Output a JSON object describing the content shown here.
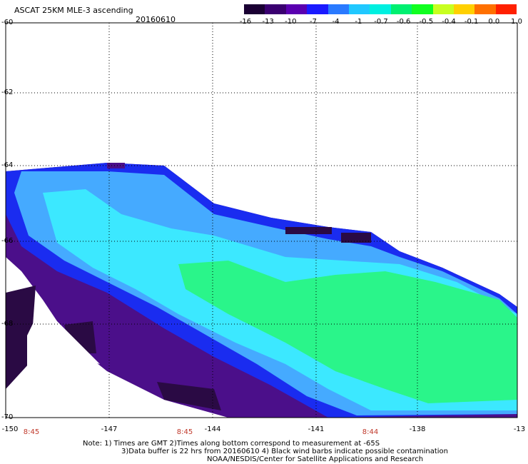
{
  "title": "ASCAT 25KM MLE-3 ascending",
  "date": "20160610",
  "colorbar": {
    "labels": [
      "-16",
      "-13",
      "-10",
      "-7",
      "-4",
      "-1",
      "-0.7",
      "-0.6",
      "-0.5",
      "-0.4",
      "-0.1",
      "0.0",
      "1.0"
    ],
    "colors": [
      "#1a0033",
      "#3a0070",
      "#5a00b0",
      "#1a1aff",
      "#2a7aff",
      "#20c8ff",
      "#00f0e0",
      "#00f070",
      "#10ff20",
      "#c8ff20",
      "#ffd000",
      "#ff7000",
      "#ff2000"
    ]
  },
  "lat_labels": [
    "-60",
    "-62",
    "-64",
    "-66",
    "-68",
    "-70"
  ],
  "lon_labels": [
    "-150",
    "-147",
    "-144",
    "-141",
    "-138",
    "-13"
  ],
  "time_labels": [
    "8:45",
    "8:45",
    "8:44"
  ],
  "notes": [
    "Note: 1) Times are GMT 2)Times along bottom correspond to measurement at -65S",
    "3)Data buffer is 22 hrs from 20160610 4) Black wind barbs indicate possible contamination",
    "NOAA/NESDIS/Center for Satellite Applications and Research"
  ],
  "colors": {
    "deep_purple": "#4b0f8a",
    "dark_purple": "#2a0a44",
    "blue": "#1a2cf0",
    "light_blue": "#45aaff",
    "cyan": "#3ce8ff",
    "green": "#2af58a"
  }
}
